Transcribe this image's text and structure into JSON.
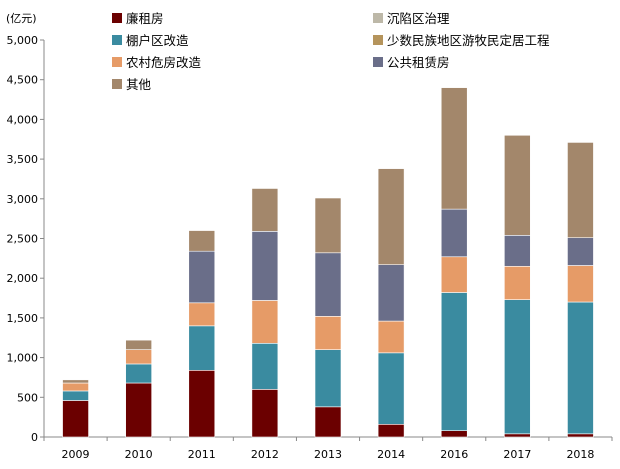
{
  "chart_data": {
    "type": "bar",
    "stacked": true,
    "title": "",
    "ylabel": "(亿元)",
    "xlabel": "",
    "ylim": [
      0,
      5000
    ],
    "yticks": [
      0,
      500,
      1000,
      1500,
      2000,
      2500,
      3000,
      3500,
      4000,
      4500,
      5000
    ],
    "ytick_labels": [
      "0",
      "500",
      "1,000",
      "1,500",
      "2,000",
      "2,500",
      "3,000",
      "3,500",
      "4,000",
      "4,500",
      "5,000"
    ],
    "categories": [
      "2009",
      "2010",
      "2011",
      "2012",
      "2013",
      "2014",
      "2016",
      "2017",
      "2018"
    ],
    "grid": false,
    "legend_position": "top",
    "series": [
      {
        "name": "廉租房",
        "color": "#6b0000",
        "values": [
          460,
          680,
          840,
          600,
          380,
          160,
          80,
          40,
          40
        ]
      },
      {
        "name": "棚户区改造",
        "color": "#3a8ba0",
        "values": [
          120,
          240,
          560,
          580,
          720,
          900,
          1740,
          1690,
          1660
        ]
      },
      {
        "name": "农村危房改造",
        "color": "#e69b67",
        "values": [
          100,
          180,
          290,
          540,
          420,
          400,
          450,
          420,
          460
        ]
      },
      {
        "name": "公共租赁房",
        "color": "#6a6e89",
        "values": [
          0,
          0,
          650,
          870,
          800,
          710,
          600,
          390,
          350
        ]
      },
      {
        "name": "其他",
        "color": "#a3876b",
        "values": [
          40,
          120,
          260,
          540,
          690,
          1210,
          1530,
          1260,
          1200
        ]
      },
      {
        "name": "沉陷区治理",
        "color": "#bdb8a8",
        "values": [
          0,
          0,
          0,
          0,
          0,
          0,
          0,
          0,
          0
        ]
      },
      {
        "name": "少数民族地区游牧民定居工程",
        "color": "#b5945c",
        "values": [
          0,
          0,
          0,
          0,
          0,
          0,
          0,
          0,
          0
        ]
      }
    ],
    "stack_order": [
      "廉租房",
      "棚户区改造",
      "农村危房改造",
      "公共租赁房",
      "其他"
    ],
    "legend": [
      {
        "name": "廉租房",
        "color": "#6b0000"
      },
      {
        "name": "棚户区改造",
        "color": "#3a8ba0"
      },
      {
        "name": "农村危房改造",
        "color": "#e69b67"
      },
      {
        "name": "其他",
        "color": "#a3876b"
      },
      {
        "name": "沉陷区治理",
        "color": "#bdb8a8"
      },
      {
        "name": "少数民族地区游牧民定居工程",
        "color": "#b5945c"
      },
      {
        "name": "公共租赁房",
        "color": "#6a6e89"
      }
    ]
  }
}
